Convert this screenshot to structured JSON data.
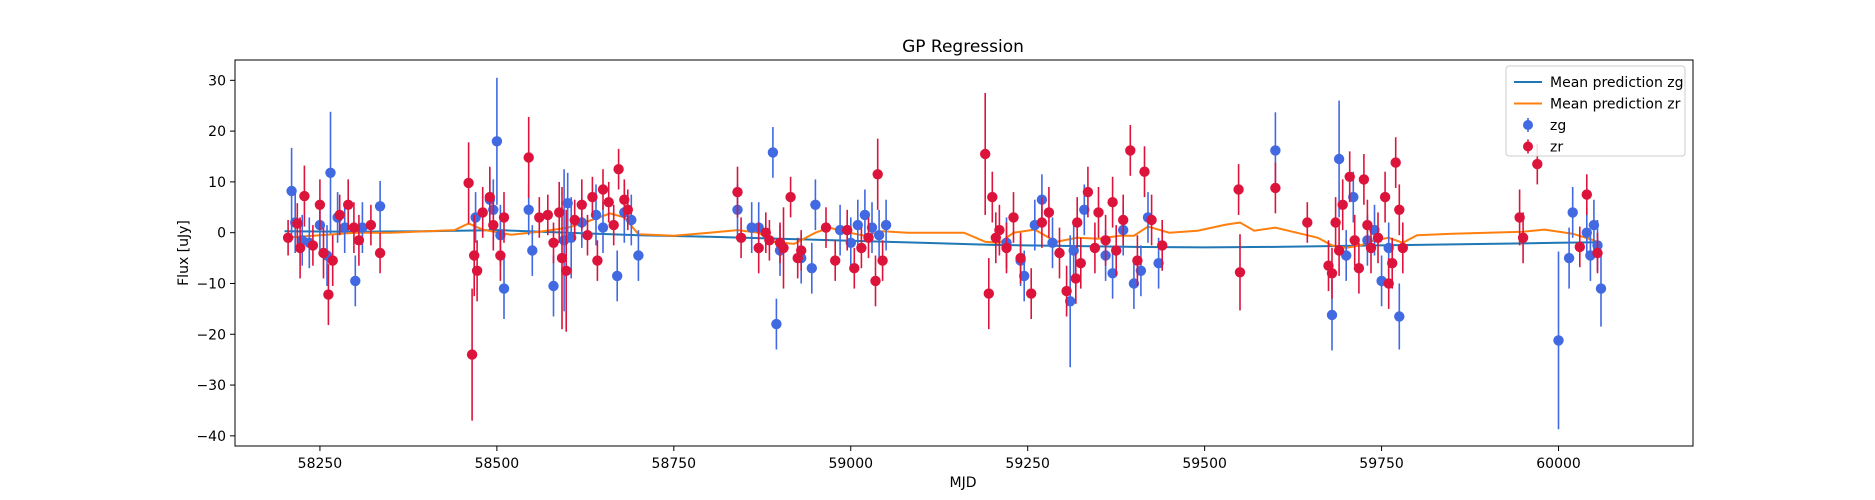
{
  "chart_data": {
    "type": "scatter",
    "title": "GP Regression",
    "xlabel": "MJD",
    "ylabel": "Flux [uJy]",
    "xlim": [
      58130,
      60190
    ],
    "ylim": [
      -42,
      34
    ],
    "x_ticks": [
      58250,
      58500,
      58750,
      59000,
      59250,
      59500,
      59750,
      60000
    ],
    "y_ticks": [
      -40,
      -30,
      -20,
      -10,
      0,
      10,
      20,
      30
    ],
    "grid": false,
    "legend_position": "top-right",
    "colors": {
      "mean_zg": "#1f77b4",
      "mean_zr": "#ff7f0e",
      "zg": "#4169e1",
      "zr": "#dc143c"
    },
    "lines": [
      {
        "name": "Mean prediction zg",
        "x": [
          58200,
          58300,
          58400,
          58500,
          58600,
          58700,
          58800,
          58900,
          59000,
          59100,
          59200,
          59300,
          59400,
          59500,
          59600,
          59700,
          59800,
          59900,
          60000,
          60060
        ],
        "y": [
          0.3,
          0.2,
          0.3,
          0.5,
          0.0,
          -0.5,
          -0.8,
          -1.2,
          -1.6,
          -2.0,
          -2.4,
          -2.6,
          -2.8,
          -2.9,
          -2.8,
          -2.6,
          -2.4,
          -2.2,
          -2.0,
          -1.9
        ]
      },
      {
        "name": "Mean prediction zr",
        "x": [
          58200,
          58250,
          58300,
          58350,
          58400,
          58440,
          58460,
          58480,
          58520,
          58560,
          58600,
          58620,
          58660,
          58680,
          58700,
          58750,
          58800,
          58840,
          58870,
          58890,
          58920,
          58950,
          58970,
          58990,
          59020,
          59045,
          59080,
          59120,
          59160,
          59190,
          59210,
          59230,
          59260,
          59290,
          59320,
          59350,
          59380,
          59400,
          59420,
          59450,
          59490,
          59530,
          59550,
          59570,
          59600,
          59630,
          59660,
          59680,
          59700,
          59720,
          59740,
          59760,
          59780,
          59800,
          59850,
          59900,
          59950,
          59980,
          60020,
          60050,
          60060
        ],
        "y": [
          -1.0,
          -0.5,
          0.0,
          0.0,
          0.3,
          0.5,
          1.8,
          0.6,
          -0.4,
          0.2,
          1.0,
          1.8,
          3.8,
          3.0,
          -0.3,
          -0.6,
          0.0,
          0.5,
          0.0,
          -1.8,
          -2.2,
          0.0,
          1.0,
          0.2,
          -0.6,
          0.3,
          0.0,
          0.0,
          0.0,
          -1.8,
          -2.0,
          0.0,
          0.6,
          -1.8,
          -1.0,
          -1.2,
          -0.6,
          -0.6,
          1.2,
          0.0,
          0.4,
          1.6,
          2.0,
          0.4,
          1.0,
          0.0,
          -1.0,
          -2.5,
          -3.0,
          -2.5,
          -1.5,
          -1.0,
          -2.0,
          -0.5,
          -0.2,
          0.0,
          0.2,
          0.6,
          -0.2,
          -1.5,
          -2.3
        ]
      }
    ],
    "series": [
      {
        "name": "zg",
        "x": [
          58210,
          58215,
          58225,
          58235,
          58250,
          58260,
          58265,
          58275,
          58285,
          58300,
          58310,
          58335,
          58470,
          58490,
          58495,
          58500,
          58505,
          58510,
          58545,
          58550,
          58580,
          58595,
          58600,
          58605,
          58620,
          58640,
          58650,
          58670,
          58680,
          58690,
          58700,
          58840,
          58860,
          58870,
          58890,
          58895,
          58900,
          58930,
          58945,
          58950,
          58985,
          59000,
          59010,
          59020,
          59030,
          59040,
          59050,
          59220,
          59240,
          59245,
          59260,
          59270,
          59285,
          59310,
          59315,
          59330,
          59360,
          59370,
          59385,
          59400,
          59410,
          59420,
          59435,
          59600,
          59680,
          59690,
          59700,
          59710,
          59730,
          59740,
          59750,
          59760,
          59775,
          60000,
          60015,
          60020,
          60040,
          60045,
          60050,
          60055,
          60060
        ],
        "y": [
          8.2,
          2.0,
          -1.5,
          -2.0,
          1.5,
          -4.5,
          11.8,
          3.0,
          1.0,
          -9.5,
          1.0,
          5.2,
          3.0,
          6.5,
          4.5,
          18.0,
          -0.5,
          -11.0,
          4.5,
          -3.5,
          -10.5,
          -1.5,
          5.8,
          -1.0,
          2.0,
          3.5,
          1.0,
          -8.5,
          4.0,
          2.5,
          -4.5,
          4.5,
          1.0,
          1.0,
          15.8,
          -18.0,
          -3.5,
          -5.0,
          -7.0,
          5.5,
          0.5,
          -2.0,
          1.5,
          3.5,
          1.0,
          -0.5,
          1.5,
          -2.0,
          -5.5,
          -8.5,
          1.5,
          6.5,
          -2.0,
          -13.5,
          -3.5,
          4.5,
          -4.5,
          -8.0,
          0.5,
          -10.0,
          -7.5,
          3.0,
          -6.0,
          16.2,
          -16.2,
          14.5,
          -4.5,
          7.0,
          -1.5,
          0.5,
          -9.5,
          -3.0,
          -16.5,
          -21.2,
          -5.0,
          4.0,
          0.0,
          -4.5,
          1.5,
          -2.5,
          -11.0
        ],
        "err": [
          8.5,
          6.0,
          5.0,
          5.0,
          5.0,
          6.0,
          12.0,
          5.0,
          5.0,
          5.0,
          5.0,
          5.0,
          5.0,
          6.0,
          6.0,
          12.5,
          6.0,
          6.0,
          5.0,
          5.0,
          6.0,
          14.0,
          6.0,
          8.0,
          5.0,
          6.0,
          5.0,
          5.0,
          6.0,
          5.0,
          5.0,
          5.0,
          5.0,
          5.0,
          5.0,
          5.0,
          5.0,
          5.0,
          5.0,
          5.0,
          5.0,
          5.0,
          5.0,
          5.0,
          5.0,
          5.0,
          5.0,
          5.0,
          5.0,
          5.0,
          5.0,
          5.0,
          5.0,
          13.0,
          6.0,
          5.0,
          5.0,
          5.0,
          5.0,
          5.0,
          5.0,
          5.0,
          5.0,
          7.5,
          7.0,
          11.5,
          5.0,
          5.0,
          5.0,
          5.0,
          5.0,
          5.0,
          6.5,
          17.5,
          6.0,
          5.0,
          5.0,
          5.0,
          5.0,
          5.0,
          7.5
        ]
      },
      {
        "name": "zr",
        "x": [
          58205,
          58218,
          58222,
          58228,
          58240,
          58250,
          58255,
          58262,
          58268,
          58278,
          58290,
          58298,
          58305,
          58322,
          58335,
          58460,
          58465,
          58468,
          58472,
          58480,
          58490,
          58495,
          58505,
          58510,
          58545,
          58560,
          58572,
          58580,
          58588,
          58592,
          58598,
          58610,
          58620,
          58628,
          58635,
          58642,
          58650,
          58658,
          58665,
          58672,
          58680,
          58685,
          58840,
          58845,
          58870,
          58880,
          58885,
          58900,
          58905,
          58915,
          58925,
          58930,
          58965,
          58978,
          58995,
          59005,
          59015,
          59025,
          59035,
          59038,
          59045,
          59190,
          59195,
          59200,
          59205,
          59210,
          59220,
          59230,
          59240,
          59255,
          59270,
          59280,
          59295,
          59305,
          59318,
          59320,
          59325,
          59335,
          59345,
          59350,
          59360,
          59370,
          59375,
          59385,
          59395,
          59405,
          59415,
          59425,
          59440,
          59548,
          59550,
          59600,
          59645,
          59675,
          59680,
          59685,
          59690,
          59695,
          59705,
          59712,
          59718,
          59725,
          59730,
          59735,
          59745,
          59755,
          59760,
          59765,
          59770,
          59775,
          59780,
          59945,
          59950,
          59970,
          60030,
          60040,
          60055
        ],
        "y": [
          -1.0,
          1.8,
          -3.0,
          7.2,
          -2.5,
          5.5,
          -4.0,
          -12.2,
          -5.5,
          3.5,
          5.5,
          1.0,
          -1.5,
          1.5,
          -4.0,
          9.8,
          -24.0,
          -4.5,
          -7.5,
          4.0,
          7.0,
          1.5,
          -4.5,
          3.0,
          14.8,
          3.0,
          3.5,
          -2.0,
          4.0,
          -5.0,
          -7.5,
          2.5,
          5.5,
          -0.5,
          7.0,
          -5.5,
          8.5,
          6.0,
          1.5,
          12.5,
          6.5,
          4.5,
          8.0,
          -1.0,
          -3.0,
          0.0,
          -1.5,
          -2.0,
          -3.0,
          7.0,
          -5.0,
          -3.5,
          1.0,
          -5.5,
          0.5,
          -7.0,
          -3.0,
          -1.0,
          -9.5,
          11.5,
          -5.5,
          15.5,
          -12.0,
          7.0,
          -1.0,
          0.5,
          -3.0,
          3.0,
          -5.0,
          -12.0,
          2.0,
          4.0,
          -4.0,
          -11.5,
          -9.0,
          2.0,
          -6.0,
          8.0,
          -3.0,
          4.0,
          -1.5,
          6.0,
          -3.5,
          2.5,
          16.2,
          -5.5,
          12.0,
          2.5,
          -2.5,
          8.5,
          -7.8,
          8.8,
          2.0,
          -6.5,
          -8.0,
          2.0,
          -3.5,
          5.5,
          11.0,
          -1.5,
          -7.0,
          10.5,
          1.5,
          -3.0,
          -1.0,
          7.0,
          -10.0,
          -6.0,
          13.8,
          4.5,
          -3.0,
          3.0,
          -1.0,
          13.5,
          -2.8,
          7.5,
          -4.0
        ],
        "err": [
          3.5,
          4.0,
          6.0,
          6.0,
          4.0,
          5.0,
          5.0,
          6.0,
          5.0,
          4.0,
          5.0,
          5.0,
          5.0,
          4.0,
          4.0,
          8.0,
          13.0,
          8.0,
          6.0,
          5.0,
          6.0,
          5.0,
          5.0,
          5.0,
          8.0,
          4.0,
          4.0,
          4.0,
          6.0,
          14.0,
          12.0,
          4.0,
          5.0,
          4.0,
          4.0,
          4.0,
          4.0,
          4.0,
          4.0,
          4.0,
          4.0,
          4.0,
          5.0,
          4.0,
          5.0,
          4.0,
          4.0,
          4.0,
          8.0,
          4.0,
          4.0,
          4.0,
          4.0,
          4.0,
          4.0,
          4.0,
          4.0,
          4.0,
          5.0,
          7.0,
          4.0,
          12.0,
          7.0,
          5.0,
          5.0,
          5.0,
          5.0,
          5.0,
          5.0,
          5.0,
          5.0,
          5.0,
          5.0,
          5.0,
          5.0,
          5.0,
          5.0,
          5.0,
          5.0,
          5.0,
          5.0,
          5.0,
          5.0,
          5.0,
          5.0,
          5.0,
          5.0,
          5.0,
          5.0,
          5.0,
          7.5,
          5.0,
          4.0,
          5.0,
          5.0,
          5.0,
          5.0,
          5.0,
          5.0,
          5.0,
          5.0,
          5.0,
          5.0,
          5.0,
          5.0,
          5.0,
          5.0,
          5.0,
          5.0,
          5.0,
          5.0,
          5.5,
          5.0,
          4.0,
          4.0,
          4.0,
          4.0
        ]
      }
    ],
    "legend": [
      {
        "label": "Mean prediction zg",
        "kind": "line",
        "color_key": "mean_zg"
      },
      {
        "label": "Mean prediction zr",
        "kind": "line",
        "color_key": "mean_zr"
      },
      {
        "label": "zg",
        "kind": "errorbar",
        "color_key": "zg"
      },
      {
        "label": "zr",
        "kind": "errorbar",
        "color_key": "zr"
      }
    ]
  }
}
